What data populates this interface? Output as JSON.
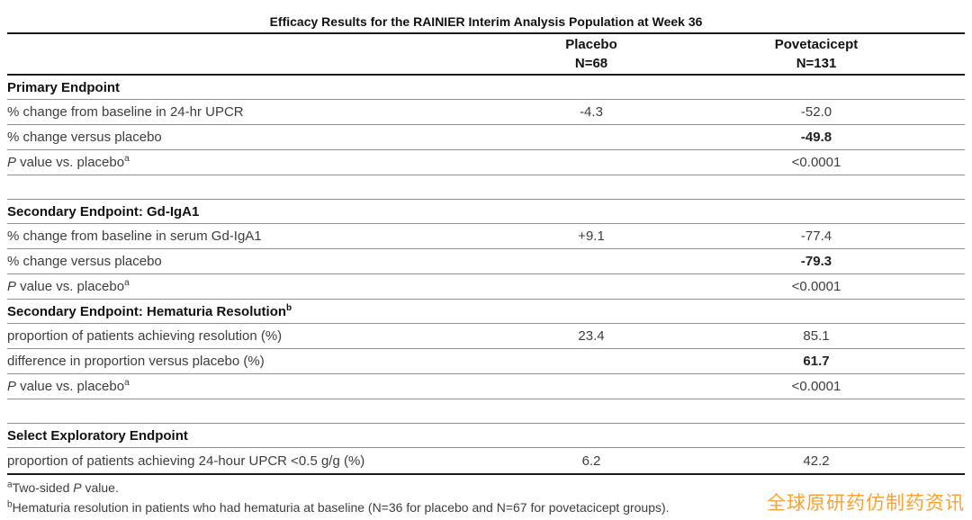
{
  "table": {
    "title": "Efficacy Results for the RAINIER Interim Analysis Population at Week 36",
    "columns": [
      {
        "label": "Placebo",
        "n": "N=68"
      },
      {
        "label": "Povetacicept",
        "n": "N=131"
      }
    ],
    "sections": [
      {
        "header": {
          "text": "Primary Endpoint",
          "sup": ""
        },
        "gap_before": false,
        "rows": [
          {
            "label": {
              "italic": "",
              "text": "% change from baseline in 24-hr UPCR",
              "sup": ""
            },
            "values": [
              "-4.3",
              "-52.0"
            ],
            "bold": [
              false,
              false
            ]
          },
          {
            "label": {
              "italic": "",
              "text": "% change versus placebo",
              "sup": ""
            },
            "values": [
              "",
              "-49.8"
            ],
            "bold": [
              false,
              true
            ]
          },
          {
            "label": {
              "italic": "P",
              "text": " value vs. placebo",
              "sup": "a"
            },
            "values": [
              "",
              "<0.0001"
            ],
            "bold": [
              false,
              false
            ]
          }
        ]
      },
      {
        "header": {
          "text": "Secondary Endpoint: Gd-IgA1",
          "sup": ""
        },
        "gap_before": true,
        "rows": [
          {
            "label": {
              "italic": "",
              "text": "% change from baseline in serum Gd-IgA1",
              "sup": ""
            },
            "values": [
              "+9.1",
              "-77.4"
            ],
            "bold": [
              false,
              false
            ]
          },
          {
            "label": {
              "italic": "",
              "text": "% change versus placebo",
              "sup": ""
            },
            "values": [
              "",
              "-79.3"
            ],
            "bold": [
              false,
              true
            ]
          },
          {
            "label": {
              "italic": "P",
              "text": " value vs. placebo",
              "sup": "a"
            },
            "values": [
              "",
              "<0.0001"
            ],
            "bold": [
              false,
              false
            ]
          }
        ]
      },
      {
        "header": {
          "text": "Secondary Endpoint: Hematuria Resolution",
          "sup": "b"
        },
        "gap_before": false,
        "rows": [
          {
            "label": {
              "italic": "",
              "text": "proportion of patients achieving resolution (%)",
              "sup": ""
            },
            "values": [
              "23.4",
              "85.1"
            ],
            "bold": [
              false,
              false
            ]
          },
          {
            "label": {
              "italic": "",
              "text": "difference in proportion versus placebo (%)",
              "sup": ""
            },
            "values": [
              "",
              "61.7"
            ],
            "bold": [
              false,
              true
            ]
          },
          {
            "label": {
              "italic": "P",
              "text": " value vs. placebo",
              "sup": "a"
            },
            "values": [
              "",
              "<0.0001"
            ],
            "bold": [
              false,
              false
            ]
          }
        ]
      },
      {
        "header": {
          "text": "Select Exploratory Endpoint",
          "sup": ""
        },
        "gap_before": true,
        "rows": [
          {
            "label": {
              "italic": "",
              "text": "proportion of patients achieving 24-hour UPCR <0.5 g/g (%)",
              "sup": ""
            },
            "values": [
              "6.2",
              "42.2"
            ],
            "bold": [
              false,
              false
            ]
          }
        ]
      }
    ],
    "footnotes": [
      {
        "sup": "a",
        "pre": "Two-sided ",
        "italic": "P",
        "post": " value."
      },
      {
        "sup": "b",
        "pre": "Hematuria resolution in patients who had hematuria at baseline (N=36 for placebo and N=67 for povetacicept groups).",
        "italic": "",
        "post": ""
      }
    ]
  },
  "watermark": {
    "text": "全球原研药仿制药资讯",
    "color": "#f9a232"
  },
  "colors": {
    "rule_dark": "#1c1c1c",
    "rule_gray": "#929292",
    "text_body": "#3d3d3d",
    "text_header": "#111111"
  }
}
